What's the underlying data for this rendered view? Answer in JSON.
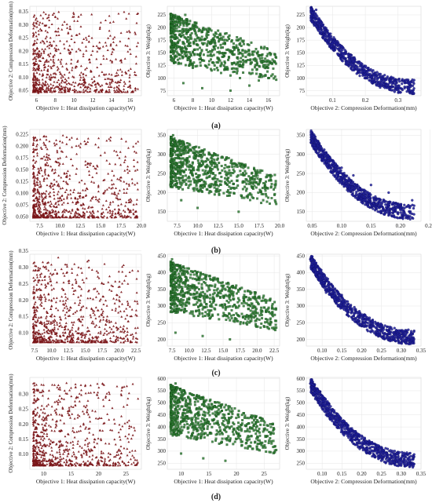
{
  "colors": {
    "maroon": "#7a1417",
    "green": "#2e7d32",
    "blue": "#1f1f9a",
    "grid": "#e6e6e6",
    "frame": "#d8d8d8"
  },
  "row_labels": [
    "(a)",
    "(b)",
    "(c)",
    "(d)"
  ],
  "chart_data": [
    {
      "type": "scatter",
      "row": "(a)",
      "xlabel": "Objective 1: Heat dissipation capacity(W)",
      "ylabel": "Objective 2: Compression Deformation(mm)",
      "xlim": [
        5.3,
        17.2
      ],
      "ylim": [
        0.03,
        0.37
      ],
      "xticks": [
        6,
        8,
        10,
        12,
        14,
        16
      ],
      "yticks": [
        0.05,
        0.1,
        0.15,
        0.2,
        0.25,
        0.3,
        0.35
      ],
      "ytick_labels": [
        "0.05",
        "0.10",
        "0.15",
        "0.20",
        "0.25",
        "0.30",
        "0.35"
      ],
      "marker": "triangle",
      "color": "maroon",
      "points": [
        [
          6.2,
          0.04
        ],
        [
          6.5,
          0.06
        ],
        [
          7,
          0.07
        ],
        [
          7.5,
          0.09
        ],
        [
          8,
          0.1
        ],
        [
          8.5,
          0.12
        ],
        [
          9,
          0.11
        ],
        [
          10,
          0.1
        ],
        [
          11,
          0.09
        ],
        [
          12,
          0.08
        ],
        [
          13,
          0.07
        ],
        [
          14,
          0.08
        ],
        [
          15,
          0.09
        ],
        [
          16,
          0.07
        ],
        [
          6.3,
          0.3
        ],
        [
          7,
          0.34
        ],
        [
          8,
          0.33
        ],
        [
          10,
          0.34
        ],
        [
          10.5,
          0.33
        ],
        [
          6.8,
          0.2
        ],
        [
          7.5,
          0.25
        ],
        [
          9,
          0.21
        ],
        [
          11,
          0.18
        ],
        [
          12,
          0.2
        ],
        [
          13.5,
          0.17
        ],
        [
          15.5,
          0.12
        ],
        [
          16.5,
          0.11
        ]
      ],
      "n": 720,
      "seed": 11
    },
    {
      "type": "scatter",
      "row": "(a)",
      "xlabel": "Objective 1: Heat dissipation capacity(W)",
      "ylabel": "Objective 3: Weight(kg)",
      "xlim": [
        5.3,
        17.2
      ],
      "ylim": [
        65,
        242
      ],
      "xticks": [
        6,
        8,
        10,
        12,
        14,
        16
      ],
      "yticks": [
        75,
        100,
        125,
        150,
        175,
        200,
        225
      ],
      "ytick_labels": [
        "75",
        "100",
        "125",
        "150",
        "175",
        "200",
        "225"
      ],
      "marker": "square",
      "color": "green",
      "points": [
        [
          6,
          150
        ],
        [
          6.5,
          130
        ],
        [
          7,
          170
        ],
        [
          7.5,
          140
        ],
        [
          8,
          120
        ],
        [
          9,
          135
        ],
        [
          10,
          115
        ],
        [
          11,
          110
        ],
        [
          12,
          105
        ],
        [
          13,
          100
        ],
        [
          14,
          110
        ],
        [
          15,
          95
        ],
        [
          16,
          100
        ],
        [
          6.2,
          205
        ],
        [
          7.2,
          225
        ],
        [
          8.2,
          195
        ],
        [
          9.5,
          180
        ],
        [
          11,
          160
        ],
        [
          13,
          150
        ],
        [
          15,
          145
        ],
        [
          16.3,
          130
        ],
        [
          7,
          90
        ],
        [
          9,
          80
        ],
        [
          12,
          75
        ],
        [
          14,
          85
        ]
      ],
      "n": 720,
      "seed": 23
    },
    {
      "type": "scatter",
      "row": "(a)",
      "xlabel": "Objective 2: Compression Deformation(mm)",
      "ylabel": "Objective 3: Weight(kg)",
      "xlim": [
        0.02,
        0.37
      ],
      "ylim": [
        65,
        242
      ],
      "xticks": [
        0.1,
        0.2,
        0.3
      ],
      "yticks": [
        75,
        100,
        125,
        150,
        175,
        200,
        225
      ],
      "xtick_labels": [
        "0.1",
        "0.2",
        "0.3"
      ],
      "ytick_labels": [
        "75",
        "100",
        "125",
        "150",
        "175",
        "200",
        "225"
      ],
      "marker": "circle",
      "color": "blue",
      "points": [
        [
          0.05,
          235
        ],
        [
          0.06,
          210
        ],
        [
          0.08,
          180
        ],
        [
          0.1,
          160
        ],
        [
          0.12,
          145
        ],
        [
          0.15,
          130
        ],
        [
          0.18,
          115
        ],
        [
          0.22,
          105
        ],
        [
          0.26,
          95
        ],
        [
          0.3,
          85
        ],
        [
          0.34,
          75
        ]
      ],
      "n": 680,
      "seed": 37,
      "curve": true
    },
    {
      "type": "scatter",
      "row": "(b)",
      "xlabel": "Objective 1: Heat dissipation capacity(W)",
      "ylabel": "Objective 2: Compression Deformation(mm)",
      "xlim": [
        6.3,
        20.0
      ],
      "ylim": [
        0.04,
        0.235
      ],
      "xticks": [
        7.5,
        10.0,
        12.5,
        15.0,
        17.5,
        20.0
      ],
      "yticks": [
        0.05,
        0.075,
        0.1,
        0.125,
        0.15,
        0.175,
        0.2,
        0.225
      ],
      "xtick_labels": [
        "7.5",
        "10.0",
        "12.5",
        "15.0",
        "17.5",
        "20.0"
      ],
      "ytick_labels": [
        "0.050",
        "0.075",
        "0.100",
        "0.125",
        "0.150",
        "0.175",
        "0.200",
        "0.225"
      ],
      "marker": "triangle",
      "color": "maroon",
      "points": [
        [
          7,
          0.05
        ],
        [
          7.5,
          0.08
        ],
        [
          8,
          0.1
        ],
        [
          9,
          0.12
        ],
        [
          10,
          0.09
        ],
        [
          12,
          0.08
        ],
        [
          14,
          0.07
        ],
        [
          16,
          0.07
        ],
        [
          18,
          0.06
        ],
        [
          19.5,
          0.05
        ],
        [
          8,
          0.22
        ],
        [
          10,
          0.21
        ],
        [
          12,
          0.2
        ],
        [
          15,
          0.18
        ],
        [
          18,
          0.17
        ]
      ],
      "n": 780,
      "seed": 41
    },
    {
      "type": "scatter",
      "row": "(b)",
      "xlabel": "Objective 1: Heat dissipation capacity(W)",
      "ylabel": "Objective 3: Weight(kg)",
      "xlim": [
        6.3,
        20.0
      ],
      "ylim": [
        125,
        365
      ],
      "xticks": [
        7.5,
        10.0,
        12.5,
        15.0,
        17.5,
        20.0
      ],
      "yticks": [
        150,
        200,
        250,
        300,
        350
      ],
      "xtick_labels": [
        "7.5",
        "10.0",
        "12.5",
        "15.0",
        "17.5",
        "20.0"
      ],
      "ytick_labels": [
        "150",
        "200",
        "250",
        "300",
        "350"
      ],
      "marker": "square",
      "color": "green",
      "points": [
        [
          7,
          350
        ],
        [
          7.5,
          320
        ],
        [
          8,
          300
        ],
        [
          9,
          260
        ],
        [
          10,
          240
        ],
        [
          12,
          220
        ],
        [
          14,
          200
        ],
        [
          16,
          190
        ],
        [
          18,
          180
        ],
        [
          19.5,
          175
        ],
        [
          8,
          180
        ],
        [
          10,
          160
        ],
        [
          15,
          150
        ]
      ],
      "n": 780,
      "seed": 53
    },
    {
      "type": "scatter",
      "row": "(b)",
      "xlabel": "Objective 2: Compression Deformation(mm)",
      "ylabel": "Objective 3: Weight(kg)",
      "xlim": [
        0.04,
        0.235
      ],
      "ylim": [
        125,
        365
      ],
      "xticks": [
        0.05,
        0.1,
        0.15,
        0.2,
        0.25
      ],
      "yticks": [
        150,
        200,
        250,
        300,
        350
      ],
      "xtick_labels": [
        "0.05",
        "0.10",
        "0.15",
        "0.20",
        "0.25"
      ],
      "ytick_labels": [
        "150",
        "200",
        "250",
        "300",
        "350"
      ],
      "marker": "circle",
      "color": "blue",
      "points": [
        [
          0.05,
          355
        ],
        [
          0.06,
          320
        ],
        [
          0.08,
          290
        ],
        [
          0.1,
          265
        ],
        [
          0.12,
          245
        ],
        [
          0.15,
          220
        ],
        [
          0.18,
          200
        ],
        [
          0.22,
          180
        ]
      ],
      "n": 760,
      "seed": 67,
      "curve": true
    },
    {
      "type": "scatter",
      "row": "(c)",
      "xlabel": "Objective 1: Heat dissipation capacity(W)",
      "ylabel": "Objective 2: Compression Deformation(mm)",
      "xlim": [
        6.8,
        23.3
      ],
      "ylim": [
        0.06,
        0.34
      ],
      "xticks": [
        7.5,
        10.0,
        12.5,
        15.0,
        17.5,
        20.0,
        22.5
      ],
      "yticks": [
        0.1,
        0.15,
        0.2,
        0.25,
        0.3,
        0.35
      ],
      "xtick_labels": [
        "7.5",
        "10.0",
        "12.5",
        "15.0",
        "17.5",
        "20.0",
        "22.5"
      ],
      "ytick_labels": [
        "0.10",
        "0.15",
        "0.20",
        "0.25",
        "0.30",
        "0.35"
      ],
      "marker": "triangle",
      "color": "maroon",
      "points": [
        [
          7.5,
          0.08
        ],
        [
          8,
          0.1
        ],
        [
          9,
          0.12
        ],
        [
          10,
          0.15
        ],
        [
          12,
          0.1
        ],
        [
          15,
          0.09
        ],
        [
          18,
          0.08
        ],
        [
          21,
          0.09
        ],
        [
          22.5,
          0.1
        ],
        [
          9,
          0.3
        ],
        [
          11,
          0.33
        ],
        [
          14,
          0.3
        ],
        [
          17,
          0.22
        ],
        [
          20,
          0.2
        ]
      ],
      "n": 760,
      "seed": 71
    },
    {
      "type": "scatter",
      "row": "(c)",
      "xlabel": "Objective 1: Heat dissipation capacity(W)",
      "ylabel": "Objective 3: Weight(kg)",
      "xlim": [
        6.8,
        23.3
      ],
      "ylim": [
        180,
        455
      ],
      "xticks": [
        7.5,
        10.0,
        12.5,
        15.0,
        17.5,
        20.0,
        22.5
      ],
      "yticks": [
        200,
        250,
        300,
        350,
        400,
        450
      ],
      "xtick_labels": [
        "7.5",
        "10.0",
        "12.5",
        "15.0",
        "17.5",
        "20.0",
        "22.5"
      ],
      "ytick_labels": [
        "200",
        "250",
        "300",
        "350",
        "400",
        "450"
      ],
      "marker": "square",
      "color": "green",
      "points": [
        [
          7.5,
          440
        ],
        [
          8,
          400
        ],
        [
          9,
          350
        ],
        [
          10,
          320
        ],
        [
          12,
          290
        ],
        [
          15,
          270
        ],
        [
          18,
          250
        ],
        [
          21,
          240
        ],
        [
          22.5,
          235
        ],
        [
          8,
          220
        ],
        [
          12,
          210
        ],
        [
          16,
          200
        ]
      ],
      "n": 760,
      "seed": 83
    },
    {
      "type": "scatter",
      "row": "(c)",
      "xlabel": "Objective 2: Compression Deformation(mm)",
      "ylabel": "Objective 3: Weight(kg)",
      "xlim": [
        0.06,
        0.35
      ],
      "ylim": [
        180,
        455
      ],
      "xticks": [
        0.1,
        0.15,
        0.2,
        0.25,
        0.3,
        0.35
      ],
      "yticks": [
        200,
        250,
        300,
        350,
        400,
        450
      ],
      "xtick_labels": [
        "0.10",
        "0.15",
        "0.20",
        "0.25",
        "0.30",
        "0.35"
      ],
      "ytick_labels": [
        "200",
        "250",
        "300",
        "350",
        "400",
        "450"
      ],
      "marker": "circle",
      "color": "blue",
      "points": [
        [
          0.07,
          440
        ],
        [
          0.09,
          380
        ],
        [
          0.11,
          340
        ],
        [
          0.14,
          300
        ],
        [
          0.18,
          270
        ],
        [
          0.22,
          245
        ],
        [
          0.27,
          225
        ],
        [
          0.32,
          205
        ]
      ],
      "n": 760,
      "seed": 97,
      "curve": true
    },
    {
      "type": "scatter",
      "row": "(d)",
      "xlabel": "Objective 1: Heat dissipation capacity(W)",
      "ylabel": "Objective 2: Compression Deformation(mm)",
      "xlim": [
        7.5,
        27.8
      ],
      "ylim": [
        0.05,
        0.355
      ],
      "xticks": [
        10,
        15,
        20,
        25
      ],
      "yticks": [
        0.1,
        0.15,
        0.2,
        0.25,
        0.3
      ],
      "xtick_labels": [
        "10",
        "15",
        "20",
        "25"
      ],
      "ytick_labels": [
        "0.10",
        "0.15",
        "0.20",
        "0.25",
        "0.30"
      ],
      "marker": "triangle",
      "color": "maroon",
      "points": [
        [
          8.5,
          0.08
        ],
        [
          9,
          0.1
        ],
        [
          10,
          0.13
        ],
        [
          11,
          0.15
        ],
        [
          13,
          0.1
        ],
        [
          16,
          0.09
        ],
        [
          20,
          0.08
        ],
        [
          24,
          0.09
        ],
        [
          27,
          0.08
        ],
        [
          10,
          0.33
        ],
        [
          12,
          0.33
        ],
        [
          15,
          0.32
        ],
        [
          21,
          0.33
        ],
        [
          22,
          0.3
        ]
      ],
      "n": 760,
      "seed": 101
    },
    {
      "type": "scatter",
      "row": "(d)",
      "xlabel": "Objective 1: Heat dissipation capacity(W)",
      "ylabel": "Objective 3: Weight(kg)",
      "xlim": [
        7.5,
        27.8
      ],
      "ylim": [
        225,
        605
      ],
      "xticks": [
        10,
        15,
        20,
        25
      ],
      "yticks": [
        250,
        300,
        350,
        400,
        450,
        500,
        550,
        600
      ],
      "xtick_labels": [
        "10",
        "15",
        "20",
        "25"
      ],
      "ytick_labels": [
        "250",
        "300",
        "350",
        "400",
        "450",
        "500",
        "550",
        "600"
      ],
      "marker": "square",
      "color": "green",
      "points": [
        [
          9,
          580
        ],
        [
          10,
          520
        ],
        [
          11,
          470
        ],
        [
          12,
          430
        ],
        [
          14,
          400
        ],
        [
          17,
          370
        ],
        [
          20,
          350
        ],
        [
          24,
          330
        ],
        [
          27,
          320
        ],
        [
          10,
          290
        ],
        [
          14,
          270
        ],
        [
          18,
          260
        ]
      ],
      "n": 760,
      "seed": 113
    },
    {
      "type": "scatter",
      "row": "(d)",
      "xlabel": "Objective 2: Compression Deformation(mm)",
      "ylabel": "Objective 3: Weight(kg)",
      "xlim": [
        0.06,
        0.35
      ],
      "ylim": [
        225,
        605
      ],
      "xticks": [
        0.1,
        0.15,
        0.2,
        0.25,
        0.3,
        0.35
      ],
      "yticks": [
        250,
        300,
        350,
        400,
        450,
        500,
        550,
        600
      ],
      "xtick_labels": [
        "0.10",
        "0.15",
        "0.20",
        "0.25",
        "0.30",
        "0.35"
      ],
      "ytick_labels": [
        "250",
        "300",
        "350",
        "400",
        "450",
        "500",
        "550",
        "600"
      ],
      "marker": "circle",
      "color": "blue",
      "points": [
        [
          0.07,
          580
        ],
        [
          0.09,
          500
        ],
        [
          0.11,
          450
        ],
        [
          0.14,
          400
        ],
        [
          0.18,
          360
        ],
        [
          0.22,
          330
        ],
        [
          0.27,
          300
        ],
        [
          0.32,
          275
        ]
      ],
      "n": 760,
      "seed": 127,
      "curve": true
    }
  ]
}
